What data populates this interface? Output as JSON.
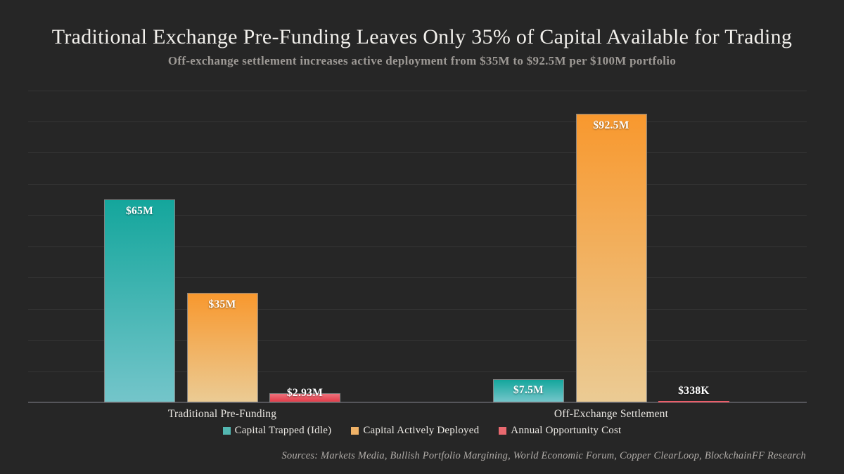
{
  "header": {
    "title": "Traditional Exchange Pre-Funding Leaves Only 35% of Capital Available for Trading",
    "subtitle": "Off-exchange settlement increases active deployment from $35M to $92.5M per $100M portfolio"
  },
  "chart_data": {
    "type": "bar",
    "categories": [
      "Traditional Pre-Funding",
      "Off-Exchange Settlement"
    ],
    "series": [
      {
        "name": "Capital Trapped (Idle)",
        "values": [
          65,
          7.5
        ],
        "labels": [
          "$65M",
          "$7.5M"
        ],
        "color_top": "#14a69c",
        "color_bottom": "#74c5ca",
        "legend_color": "#53b7b1"
      },
      {
        "name": "Capital Actively Deployed",
        "values": [
          35,
          92.5
        ],
        "labels": [
          "$35M",
          "$92.5M"
        ],
        "color_top": "#f8982e",
        "color_bottom": "#ebcb94",
        "legend_color": "#f0b267"
      },
      {
        "name": "Annual Opportunity Cost",
        "values": [
          2.93,
          0.338
        ],
        "labels": [
          "$2.93M",
          "$338K"
        ],
        "color_top": "#ee727c",
        "color_bottom": "#e33c49",
        "legend_color": "#e9696f"
      }
    ],
    "title": "Traditional Exchange Pre-Funding Leaves Only 35% of Capital Available for Trading",
    "xlabel": "",
    "ylabel": "",
    "ylim": [
      0,
      100
    ],
    "grid": "horizontal gridlines every 10, no y tick labels",
    "legend_position": "bottom"
  },
  "footer": {
    "source": "Sources: Markets Media, Bullish Portfolio Margining, World Economic Forum, Copper ClearLoop, BlockchainFF Research"
  },
  "colors": {
    "background": "#262626",
    "gridline": "rgba(255,255,255,0.07)",
    "axis_line": "#55555a",
    "bar_edge": "#828282",
    "title_text": "#f2f0ec",
    "subtitle_text": "#9d9995",
    "label_text": "#ffffff",
    "source_text": "#b0aca8"
  }
}
